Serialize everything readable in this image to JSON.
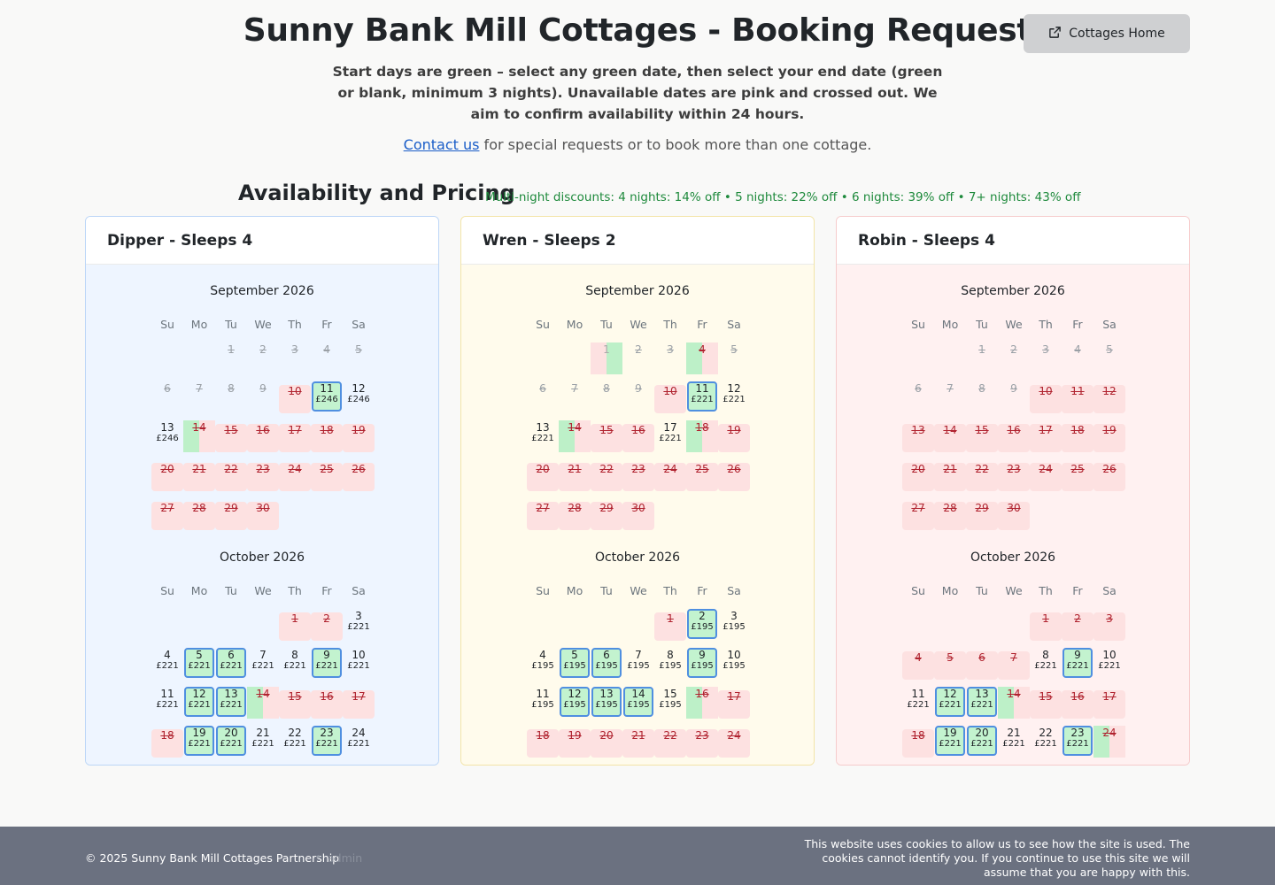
{
  "header": {
    "title": "Sunny Bank Mill Cottages - Booking Request",
    "intro": "Start days are green – select any green date, then select your end date (green or blank, minimum 3 nights). Unavailable dates are pink and crossed out. We aim to confirm availability within 24 hours.",
    "contact_link": "Contact us",
    "contact_text": " for special requests or to book more than one cottage.",
    "home_button": "Cottages Home",
    "home_icon": "external-link-icon"
  },
  "availability": {
    "title": "Availability and Pricing",
    "discounts": "Multi-night discounts: 4 nights: 14% off • 5 nights: 22% off • 6 nights: 39% off • 7+ nights: 43% off"
  },
  "weekdays": [
    "Su",
    "Mo",
    "Tu",
    "We",
    "Th",
    "Fr",
    "Sa"
  ],
  "colors": {
    "start_green": "#c3f3cf",
    "selected_border": "#4f8fe0",
    "unavailable_pink": "#fde1e1",
    "unavailable_text": "#b0232f",
    "dipper_bg": "#eef5ff",
    "wren_bg": "#fffbec",
    "robin_bg": "#fff1f1"
  },
  "cottages": [
    {
      "name": "Dipper - Sleeps 4",
      "months": [
        {
          "name": "September 2026",
          "offset": 2,
          "days": [
            {
              "d": "1",
              "s": "past"
            },
            {
              "d": "2",
              "s": "past"
            },
            {
              "d": "3",
              "s": "past"
            },
            {
              "d": "4",
              "s": "past"
            },
            {
              "d": "5",
              "s": "past"
            },
            {
              "d": "6",
              "s": "past"
            },
            {
              "d": "7",
              "s": "past"
            },
            {
              "d": "8",
              "s": "past"
            },
            {
              "d": "9",
              "s": "past"
            },
            {
              "d": "10",
              "s": "un"
            },
            {
              "d": "11",
              "s": "st",
              "p": "£246"
            },
            {
              "d": "12",
              "s": "av",
              "p": "£246"
            },
            {
              "d": "13",
              "s": "av",
              "p": "£246"
            },
            {
              "d": "14",
              "s": "ps"
            },
            {
              "d": "15",
              "s": "un"
            },
            {
              "d": "16",
              "s": "un"
            },
            {
              "d": "17",
              "s": "un"
            },
            {
              "d": "18",
              "s": "un"
            },
            {
              "d": "19",
              "s": "un"
            },
            {
              "d": "20",
              "s": "un"
            },
            {
              "d": "21",
              "s": "un"
            },
            {
              "d": "22",
              "s": "un"
            },
            {
              "d": "23",
              "s": "un"
            },
            {
              "d": "24",
              "s": "un"
            },
            {
              "d": "25",
              "s": "un"
            },
            {
              "d": "26",
              "s": "un"
            },
            {
              "d": "27",
              "s": "un"
            },
            {
              "d": "28",
              "s": "un"
            },
            {
              "d": "29",
              "s": "un"
            },
            {
              "d": "30",
              "s": "un"
            }
          ]
        },
        {
          "name": "October 2026",
          "offset": 4,
          "days": [
            {
              "d": "1",
              "s": "un"
            },
            {
              "d": "2",
              "s": "un"
            },
            {
              "d": "3",
              "s": "av",
              "p": "£221"
            },
            {
              "d": "4",
              "s": "av",
              "p": "£221"
            },
            {
              "d": "5",
              "s": "st",
              "p": "£221"
            },
            {
              "d": "6",
              "s": "st",
              "p": "£221"
            },
            {
              "d": "7",
              "s": "av",
              "p": "£221"
            },
            {
              "d": "8",
              "s": "av",
              "p": "£221"
            },
            {
              "d": "9",
              "s": "st",
              "p": "£221"
            },
            {
              "d": "10",
              "s": "av",
              "p": "£221"
            },
            {
              "d": "11",
              "s": "av",
              "p": "£221"
            },
            {
              "d": "12",
              "s": "st",
              "p": "£221"
            },
            {
              "d": "13",
              "s": "st",
              "p": "£221"
            },
            {
              "d": "14",
              "s": "ps"
            },
            {
              "d": "15",
              "s": "un"
            },
            {
              "d": "16",
              "s": "un"
            },
            {
              "d": "17",
              "s": "un"
            },
            {
              "d": "18",
              "s": "un"
            },
            {
              "d": "19",
              "s": "st",
              "p": "£221"
            },
            {
              "d": "20",
              "s": "st",
              "p": "£221"
            },
            {
              "d": "21",
              "s": "av",
              "p": "£221"
            },
            {
              "d": "22",
              "s": "av",
              "p": "£221"
            },
            {
              "d": "23",
              "s": "st",
              "p": "£221"
            },
            {
              "d": "24",
              "s": "av",
              "p": "£221"
            }
          ]
        }
      ]
    },
    {
      "name": "Wren - Sleeps 2",
      "months": [
        {
          "name": "September 2026",
          "offset": 2,
          "days": [
            {
              "d": "1",
              "s": "pe"
            },
            {
              "d": "2",
              "s": "past"
            },
            {
              "d": "3",
              "s": "past"
            },
            {
              "d": "4",
              "s": "ps"
            },
            {
              "d": "5",
              "s": "past"
            },
            {
              "d": "6",
              "s": "past"
            },
            {
              "d": "7",
              "s": "past"
            },
            {
              "d": "8",
              "s": "past"
            },
            {
              "d": "9",
              "s": "past"
            },
            {
              "d": "10",
              "s": "un"
            },
            {
              "d": "11",
              "s": "st",
              "p": "£221"
            },
            {
              "d": "12",
              "s": "av",
              "p": "£221"
            },
            {
              "d": "13",
              "s": "av",
              "p": "£221"
            },
            {
              "d": "14",
              "s": "ps"
            },
            {
              "d": "15",
              "s": "un"
            },
            {
              "d": "16",
              "s": "un"
            },
            {
              "d": "17",
              "s": "av",
              "p": "£221"
            },
            {
              "d": "18",
              "s": "ps"
            },
            {
              "d": "19",
              "s": "un"
            },
            {
              "d": "20",
              "s": "un"
            },
            {
              "d": "21",
              "s": "un"
            },
            {
              "d": "22",
              "s": "un"
            },
            {
              "d": "23",
              "s": "un"
            },
            {
              "d": "24",
              "s": "un"
            },
            {
              "d": "25",
              "s": "un"
            },
            {
              "d": "26",
              "s": "un"
            },
            {
              "d": "27",
              "s": "un"
            },
            {
              "d": "28",
              "s": "un"
            },
            {
              "d": "29",
              "s": "un"
            },
            {
              "d": "30",
              "s": "un"
            }
          ]
        },
        {
          "name": "October 2026",
          "offset": 4,
          "days": [
            {
              "d": "1",
              "s": "un"
            },
            {
              "d": "2",
              "s": "st",
              "p": "£195"
            },
            {
              "d": "3",
              "s": "av",
              "p": "£195"
            },
            {
              "d": "4",
              "s": "av",
              "p": "£195"
            },
            {
              "d": "5",
              "s": "st",
              "p": "£195"
            },
            {
              "d": "6",
              "s": "st",
              "p": "£195"
            },
            {
              "d": "7",
              "s": "av",
              "p": "£195"
            },
            {
              "d": "8",
              "s": "av",
              "p": "£195"
            },
            {
              "d": "9",
              "s": "st",
              "p": "£195"
            },
            {
              "d": "10",
              "s": "av",
              "p": "£195"
            },
            {
              "d": "11",
              "s": "av",
              "p": "£195"
            },
            {
              "d": "12",
              "s": "st",
              "p": "£195"
            },
            {
              "d": "13",
              "s": "st",
              "p": "£195"
            },
            {
              "d": "14",
              "s": "st",
              "p": "£195"
            },
            {
              "d": "15",
              "s": "av",
              "p": "£195"
            },
            {
              "d": "16",
              "s": "ps"
            },
            {
              "d": "17",
              "s": "un"
            },
            {
              "d": "18",
              "s": "un"
            },
            {
              "d": "19",
              "s": "un"
            },
            {
              "d": "20",
              "s": "un"
            },
            {
              "d": "21",
              "s": "un"
            },
            {
              "d": "22",
              "s": "un"
            },
            {
              "d": "23",
              "s": "un"
            },
            {
              "d": "24",
              "s": "un"
            }
          ]
        }
      ]
    },
    {
      "name": "Robin - Sleeps 4",
      "months": [
        {
          "name": "September 2026",
          "offset": 2,
          "days": [
            {
              "d": "1",
              "s": "past"
            },
            {
              "d": "2",
              "s": "past"
            },
            {
              "d": "3",
              "s": "past"
            },
            {
              "d": "4",
              "s": "past"
            },
            {
              "d": "5",
              "s": "past"
            },
            {
              "d": "6",
              "s": "past"
            },
            {
              "d": "7",
              "s": "past"
            },
            {
              "d": "8",
              "s": "past"
            },
            {
              "d": "9",
              "s": "past"
            },
            {
              "d": "10",
              "s": "un"
            },
            {
              "d": "11",
              "s": "un"
            },
            {
              "d": "12",
              "s": "un"
            },
            {
              "d": "13",
              "s": "un"
            },
            {
              "d": "14",
              "s": "un"
            },
            {
              "d": "15",
              "s": "un"
            },
            {
              "d": "16",
              "s": "un"
            },
            {
              "d": "17",
              "s": "un"
            },
            {
              "d": "18",
              "s": "un"
            },
            {
              "d": "19",
              "s": "un"
            },
            {
              "d": "20",
              "s": "un"
            },
            {
              "d": "21",
              "s": "un"
            },
            {
              "d": "22",
              "s": "un"
            },
            {
              "d": "23",
              "s": "un"
            },
            {
              "d": "24",
              "s": "un"
            },
            {
              "d": "25",
              "s": "un"
            },
            {
              "d": "26",
              "s": "un"
            },
            {
              "d": "27",
              "s": "un"
            },
            {
              "d": "28",
              "s": "un"
            },
            {
              "d": "29",
              "s": "un"
            },
            {
              "d": "30",
              "s": "un"
            }
          ]
        },
        {
          "name": "October 2026",
          "offset": 4,
          "days": [
            {
              "d": "1",
              "s": "un"
            },
            {
              "d": "2",
              "s": "un"
            },
            {
              "d": "3",
              "s": "un"
            },
            {
              "d": "4",
              "s": "un"
            },
            {
              "d": "5",
              "s": "un"
            },
            {
              "d": "6",
              "s": "un"
            },
            {
              "d": "7",
              "s": "un"
            },
            {
              "d": "8",
              "s": "av",
              "p": "£221"
            },
            {
              "d": "9",
              "s": "st",
              "p": "£221"
            },
            {
              "d": "10",
              "s": "av",
              "p": "£221"
            },
            {
              "d": "11",
              "s": "av",
              "p": "£221"
            },
            {
              "d": "12",
              "s": "st",
              "p": "£221"
            },
            {
              "d": "13",
              "s": "st",
              "p": "£221"
            },
            {
              "d": "14",
              "s": "ps"
            },
            {
              "d": "15",
              "s": "un"
            },
            {
              "d": "16",
              "s": "un"
            },
            {
              "d": "17",
              "s": "un"
            },
            {
              "d": "18",
              "s": "un"
            },
            {
              "d": "19",
              "s": "st",
              "p": "£221"
            },
            {
              "d": "20",
              "s": "st",
              "p": "£221"
            },
            {
              "d": "21",
              "s": "av",
              "p": "£221"
            },
            {
              "d": "22",
              "s": "av",
              "p": "£221"
            },
            {
              "d": "23",
              "s": "st",
              "p": "£221"
            },
            {
              "d": "24",
              "s": "ps"
            }
          ]
        }
      ]
    }
  ],
  "footer": {
    "copyright": "© 2025 Sunny Bank Mill Cottages Partnership",
    "separator": "•",
    "admin": "admin",
    "cookies": "This website uses cookies to allow us to see how the site is used. The cookies cannot identify you. If you continue to use this site we will assume that you are happy with this."
  }
}
